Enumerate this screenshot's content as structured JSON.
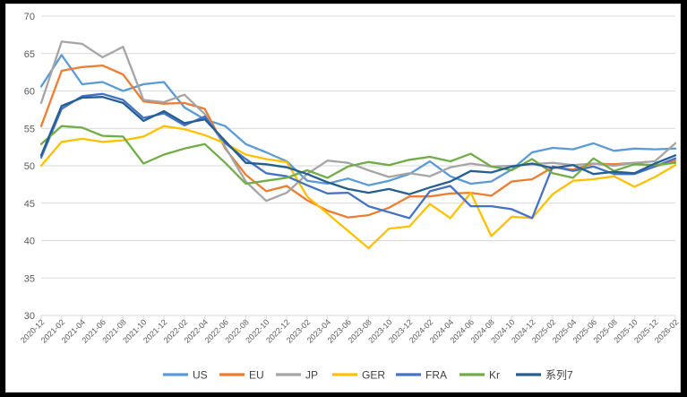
{
  "chart_data": {
    "type": "line",
    "title": "",
    "xlabel": "",
    "ylabel": "",
    "ylim": [
      30,
      70
    ],
    "ytick_step": 5,
    "yticks": [
      70,
      65,
      60,
      55,
      50,
      45,
      40,
      35,
      30
    ],
    "grid": true,
    "legend_position": "bottom",
    "axis_color": "#D9D9D9",
    "label_color": "#595959",
    "categories": [
      "2020-12",
      "2021-02",
      "2021-04",
      "2021-06",
      "2021-08",
      "2021-10",
      "2021-12",
      "2022-02",
      "2022-04",
      "2022-06",
      "2022-08",
      "2022-10",
      "2022-12",
      "2023-02",
      "2023-04",
      "2023-06",
      "2023-08",
      "2023-10",
      "2023-12",
      "2024-02",
      "2024-04",
      "2024-06",
      "2024-08",
      "2024-10",
      "2024-12",
      "2025-02",
      "2025-04",
      "2025-06",
      "2025-08",
      "2025-10",
      "2025-12",
      "2026-02"
    ],
    "series": [
      {
        "name": "US",
        "color": "#5B9BD5",
        "values": [
          60.6,
          64.8,
          60.9,
          61.2,
          60.0,
          60.9,
          61.2,
          57.8,
          56.2,
          55.3,
          52.9,
          51.8,
          50.6,
          48.0,
          47.6,
          48.3,
          47.4,
          48.0,
          48.9,
          50.6,
          48.6,
          47.6,
          47.9,
          49.5,
          51.8,
          52.4,
          52.2,
          53.0,
          52.0,
          52.3,
          52.2,
          52.3
        ]
      },
      {
        "name": "EU",
        "color": "#ED7D31",
        "values": [
          55.3,
          62.7,
          63.2,
          63.4,
          62.2,
          58.6,
          58.3,
          58.4,
          57.6,
          52.3,
          48.8,
          46.6,
          47.3,
          45.4,
          44.0,
          43.1,
          43.4,
          44.4,
          45.9,
          45.9,
          46.3,
          46.4,
          46.0,
          47.9,
          48.2,
          49.8,
          49.5,
          50.3,
          50.2,
          50.4,
          49.9,
          50.7
        ]
      },
      {
        "name": "JP",
        "color": "#A5A5A5",
        "values": [
          58.4,
          66.6,
          66.3,
          64.5,
          65.9,
          58.8,
          58.5,
          59.5,
          56.9,
          52.5,
          47.9,
          45.3,
          46.4,
          48.9,
          50.7,
          50.4,
          49.4,
          48.5,
          49.0,
          48.6,
          49.8,
          50.3,
          49.9,
          50.0,
          50.2,
          50.4,
          50.1,
          50.3,
          50.0,
          50.4,
          50.6,
          53.0
        ]
      },
      {
        "name": "GER",
        "color": "#FFC000",
        "values": [
          50.0,
          53.2,
          53.6,
          53.2,
          53.4,
          53.9,
          55.3,
          54.9,
          54.1,
          53.0,
          51.5,
          50.9,
          50.5,
          45.9,
          43.6,
          41.3,
          39.0,
          41.6,
          41.9,
          44.9,
          43.0,
          46.4,
          40.6,
          43.2,
          43.0,
          46.2,
          48.0,
          48.2,
          48.6,
          47.2,
          48.5,
          50.1
        ]
      },
      {
        "name": "FRA",
        "color": "#4472C4",
        "values": [
          51.1,
          57.6,
          59.3,
          59.6,
          58.8,
          56.4,
          57.0,
          55.4,
          56.6,
          53.0,
          50.9,
          49.0,
          48.6,
          47.4,
          46.3,
          46.4,
          44.6,
          43.8,
          43.0,
          46.6,
          47.3,
          44.6,
          44.6,
          44.2,
          43.0,
          49.9,
          49.3,
          49.9,
          48.9,
          48.9,
          49.9,
          51.0
        ]
      },
      {
        "name": "Kr",
        "color": "#70AD47",
        "values": [
          52.9,
          55.3,
          55.1,
          54.0,
          53.9,
          50.3,
          51.5,
          52.3,
          52.9,
          50.4,
          47.6,
          48.0,
          48.4,
          49.4,
          48.4,
          49.9,
          50.5,
          50.1,
          50.8,
          51.2,
          50.6,
          51.6,
          49.9,
          49.4,
          50.9,
          49.0,
          48.4,
          51.0,
          49.3,
          50.2,
          50.1,
          50.4
        ]
      },
      {
        "name": "系列7",
        "color": "#255E91",
        "values": [
          51.4,
          58.0,
          59.1,
          59.2,
          58.4,
          56.0,
          57.3,
          55.7,
          56.2,
          53.3,
          50.4,
          50.2,
          49.8,
          48.9,
          47.8,
          46.9,
          46.4,
          46.9,
          46.2,
          47.1,
          47.9,
          49.3,
          49.1,
          49.9,
          50.3,
          49.7,
          50.1,
          48.9,
          49.2,
          49.0,
          50.3,
          51.4
        ]
      }
    ]
  }
}
